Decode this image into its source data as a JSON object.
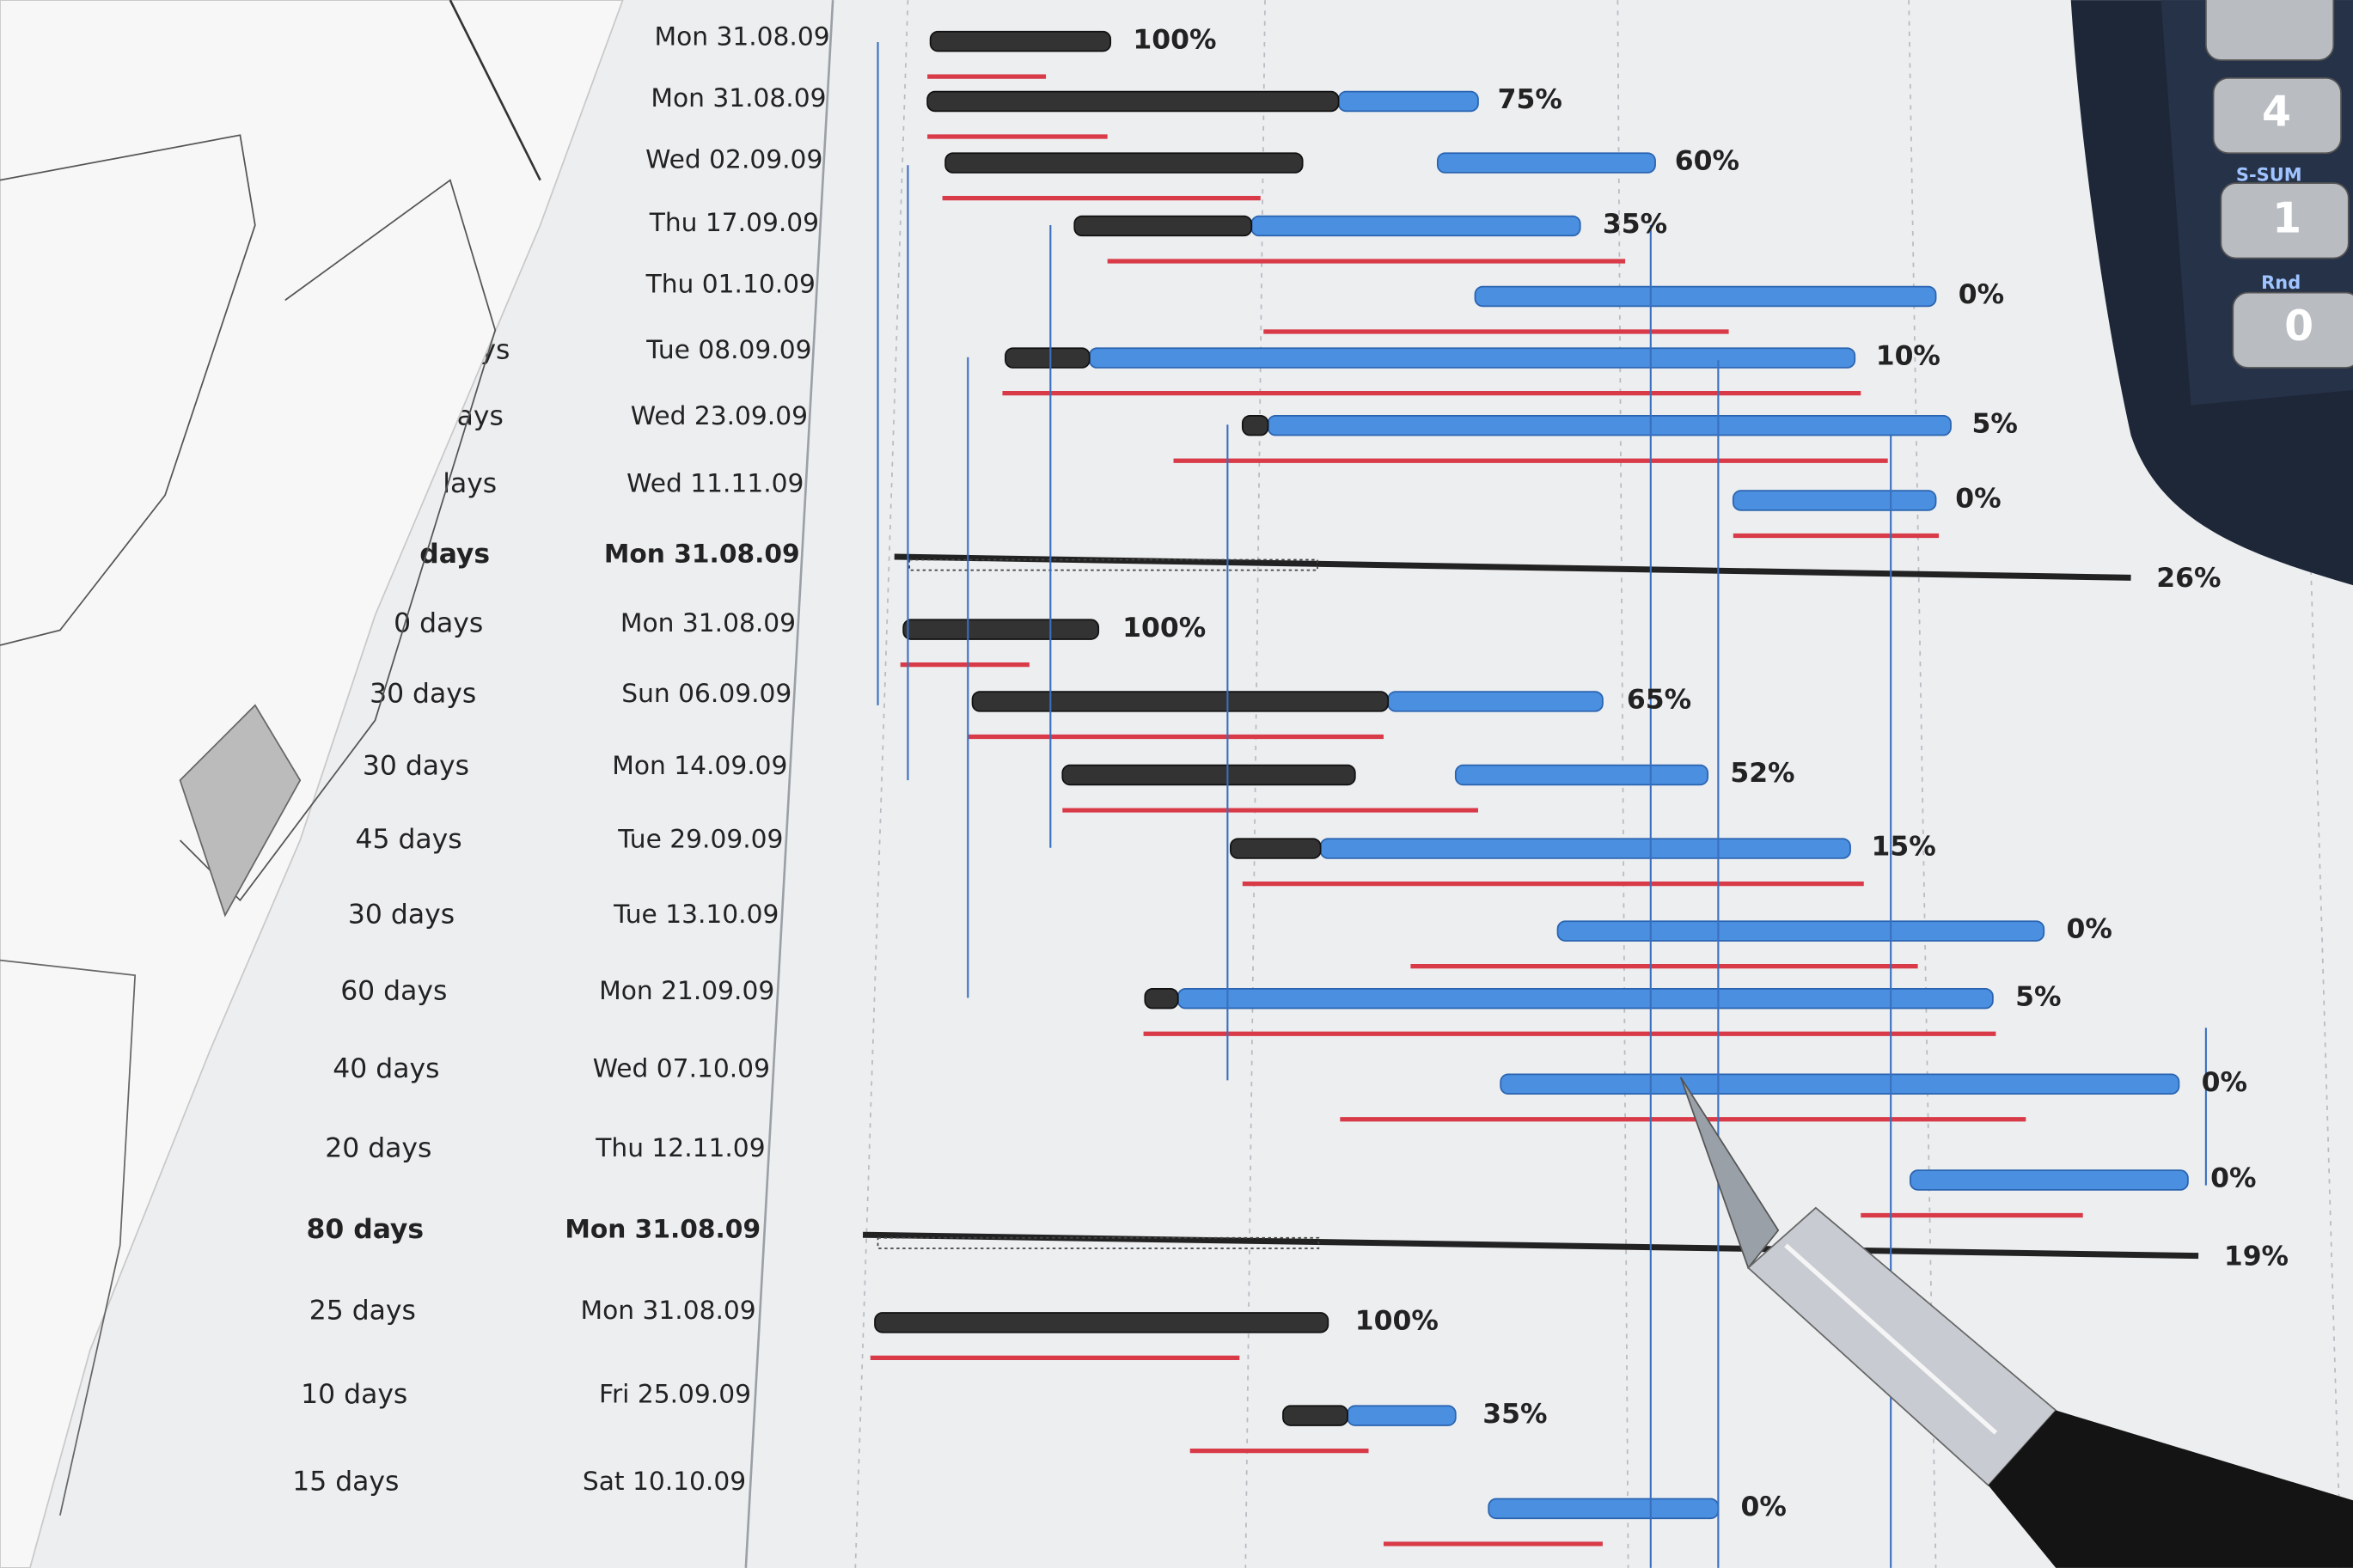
{
  "rows": [
    {
      "start": "Mon 31.08.09",
      "complete": "100%"
    },
    {
      "start": "Mon 31.08.09",
      "complete": "75%"
    },
    {
      "start": "Wed 02.09.09",
      "complete": "60%"
    },
    {
      "start": "Thu 17.09.09",
      "complete": "35%"
    },
    {
      "start": "Thu 01.10.09",
      "complete": "0%"
    },
    {
      "duration": "ys",
      "start": "Tue 08.09.09",
      "complete": "10%"
    },
    {
      "duration": "ays",
      "start": "Wed 23.09.09",
      "complete": "5%"
    },
    {
      "duration": "lays",
      "start": "Wed 11.11.09",
      "complete": "0%"
    },
    {
      "duration": "days",
      "start": "Mon 31.08.09",
      "complete": "26%",
      "summary": true
    },
    {
      "duration": "0 days",
      "start": "Mon 31.08.09",
      "complete": "100%"
    },
    {
      "duration": "30 days",
      "start": "Sun 06.09.09",
      "complete": "65%"
    },
    {
      "duration": "30 days",
      "start": "Mon 14.09.09",
      "complete": "52%"
    },
    {
      "duration": "45 days",
      "start": "Tue 29.09.09",
      "complete": "15%"
    },
    {
      "duration": "30 days",
      "start": "Tue 13.10.09",
      "complete": "0%"
    },
    {
      "duration": "60 days",
      "start": "Mon 21.09.09",
      "complete": "5%"
    },
    {
      "duration": "40 days",
      "start": "Wed 07.10.09",
      "complete": "0%"
    },
    {
      "duration": "20 days",
      "start": "Thu 12.11.09",
      "complete": "0%"
    },
    {
      "duration": "80 days",
      "start": "Mon 31.08.09",
      "complete": "19%",
      "summary": true
    },
    {
      "duration": "25 days",
      "start": "Mon 31.08.09",
      "complete": "100%"
    },
    {
      "duration": "10 days",
      "start": "Fri 25.09.09",
      "complete": "35%"
    },
    {
      "duration": "15 days",
      "start": "Sat 10.10.09",
      "complete": "0%"
    }
  ],
  "calculator": {
    "keys": [
      "4",
      "S-SUM",
      "1",
      "Rnd",
      "0"
    ]
  }
}
